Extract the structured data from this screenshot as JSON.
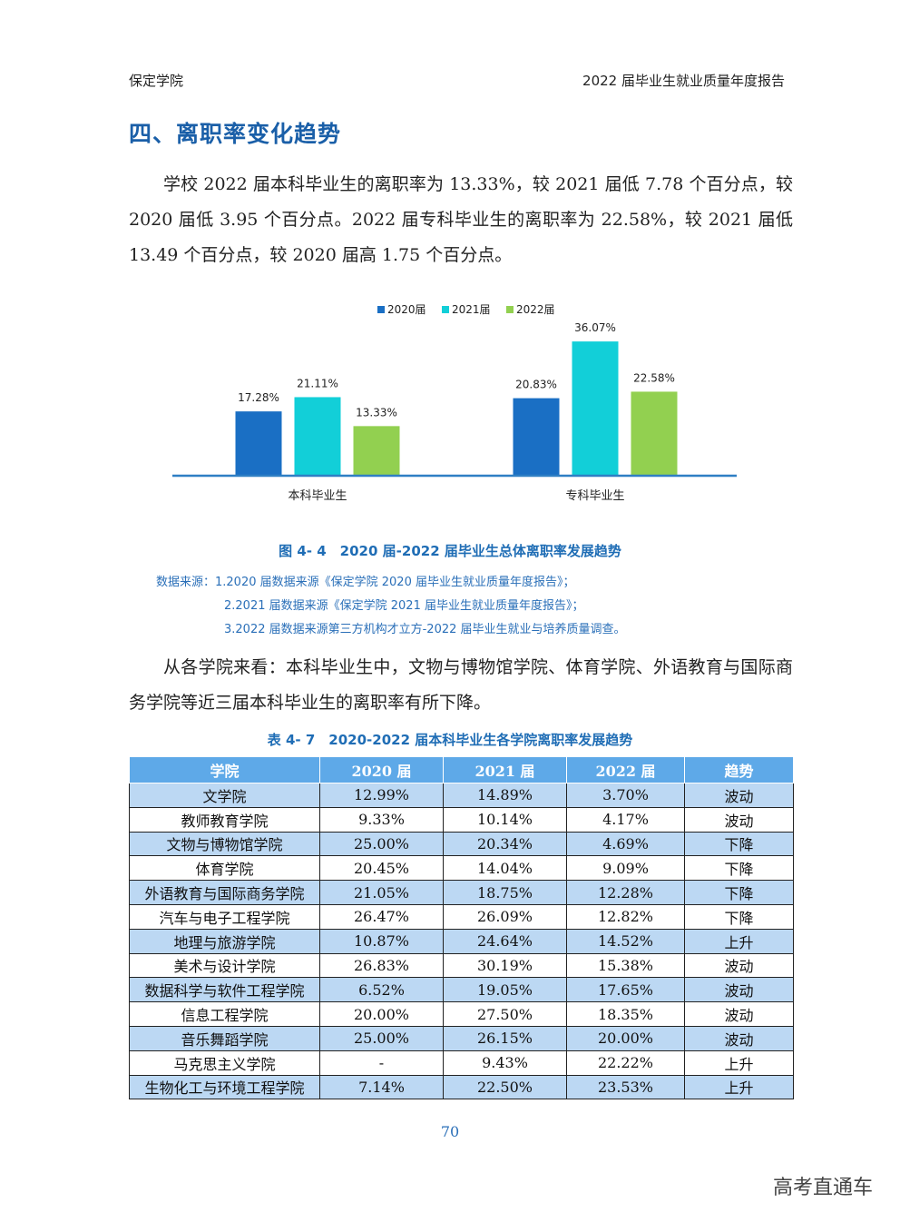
{
  "header": {
    "left": "保定学院",
    "right": "2022 届毕业生就业质量年度报告"
  },
  "section_title": "四、离职率变化趋势",
  "paragraph1": "学校 2022 届本科毕业生的离职率为 13.33%，较 2021 届低 7.78 个百分点，较 2020 届低 3.95 个百分点。2022 届专科毕业生的离职率为 22.58%，较 2021 届低 13.49 个百分点，较 2020 届高 1.75 个百分点。",
  "chart_data": {
    "type": "bar",
    "categories": [
      "本科毕业生",
      "专科毕业生"
    ],
    "series": [
      {
        "name": "2020届",
        "values": [
          17.28,
          20.83
        ],
        "labels": [
          "17.28%",
          "20.83%"
        ],
        "color": "#1a6fc4"
      },
      {
        "name": "2021届",
        "values": [
          21.11,
          36.07
        ],
        "labels": [
          "21.11%",
          "36.07%"
        ],
        "color": "#12cfd8"
      },
      {
        "name": "2022届",
        "values": [
          13.33,
          22.58
        ],
        "labels": [
          "13.33%",
          "22.58%"
        ],
        "color": "#92d050"
      }
    ],
    "ylim": [
      0,
      40
    ],
    "grid": false,
    "legend_position": "top"
  },
  "figure_caption": "图 4- 4　2020 届-2022 届毕业生总体离职率发展趋势",
  "sources": [
    "数据来源：1.2020 届数据来源《保定学院 2020 届毕业生就业质量年度报告》；",
    "2.2021 届数据来源《保定学院 2021 届毕业生就业质量年度报告》；",
    "3.2022 届数据来源第三方机构才立方-2022 届毕业生就业与培养质量调查。"
  ],
  "paragraph2": "从各学院来看：本科毕业生中，文物与博物馆学院、体育学院、外语教育与国际商务学院等近三届本科毕业生的离职率有所下降。",
  "table_caption": "表 4- 7　2020-2022 届本科毕业生各学院离职率发展趋势",
  "table": {
    "headers": [
      "学院",
      "2020 届",
      "2021 届",
      "2022 届",
      "趋势"
    ],
    "rows": [
      [
        "文学院",
        "12.99%",
        "14.89%",
        "3.70%",
        "波动"
      ],
      [
        "教师教育学院",
        "9.33%",
        "10.14%",
        "4.17%",
        "波动"
      ],
      [
        "文物与博物馆学院",
        "25.00%",
        "20.34%",
        "4.69%",
        "下降"
      ],
      [
        "体育学院",
        "20.45%",
        "14.04%",
        "9.09%",
        "下降"
      ],
      [
        "外语教育与国际商务学院",
        "21.05%",
        "18.75%",
        "12.28%",
        "下降"
      ],
      [
        "汽车与电子工程学院",
        "26.47%",
        "26.09%",
        "12.82%",
        "下降"
      ],
      [
        "地理与旅游学院",
        "10.87%",
        "24.64%",
        "14.52%",
        "上升"
      ],
      [
        "美术与设计学院",
        "26.83%",
        "30.19%",
        "15.38%",
        "波动"
      ],
      [
        "数据科学与软件工程学院",
        "6.52%",
        "19.05%",
        "17.65%",
        "波动"
      ],
      [
        "信息工程学院",
        "20.00%",
        "27.50%",
        "18.35%",
        "波动"
      ],
      [
        "音乐舞蹈学院",
        "25.00%",
        "26.15%",
        "20.00%",
        "波动"
      ],
      [
        "马克思主义学院",
        "-",
        "9.43%",
        "22.22%",
        "上升"
      ],
      [
        "生物化工与环境工程学院",
        "7.14%",
        "22.50%",
        "23.53%",
        "上升"
      ]
    ]
  },
  "page_number": "70",
  "watermark": "高考直通车"
}
